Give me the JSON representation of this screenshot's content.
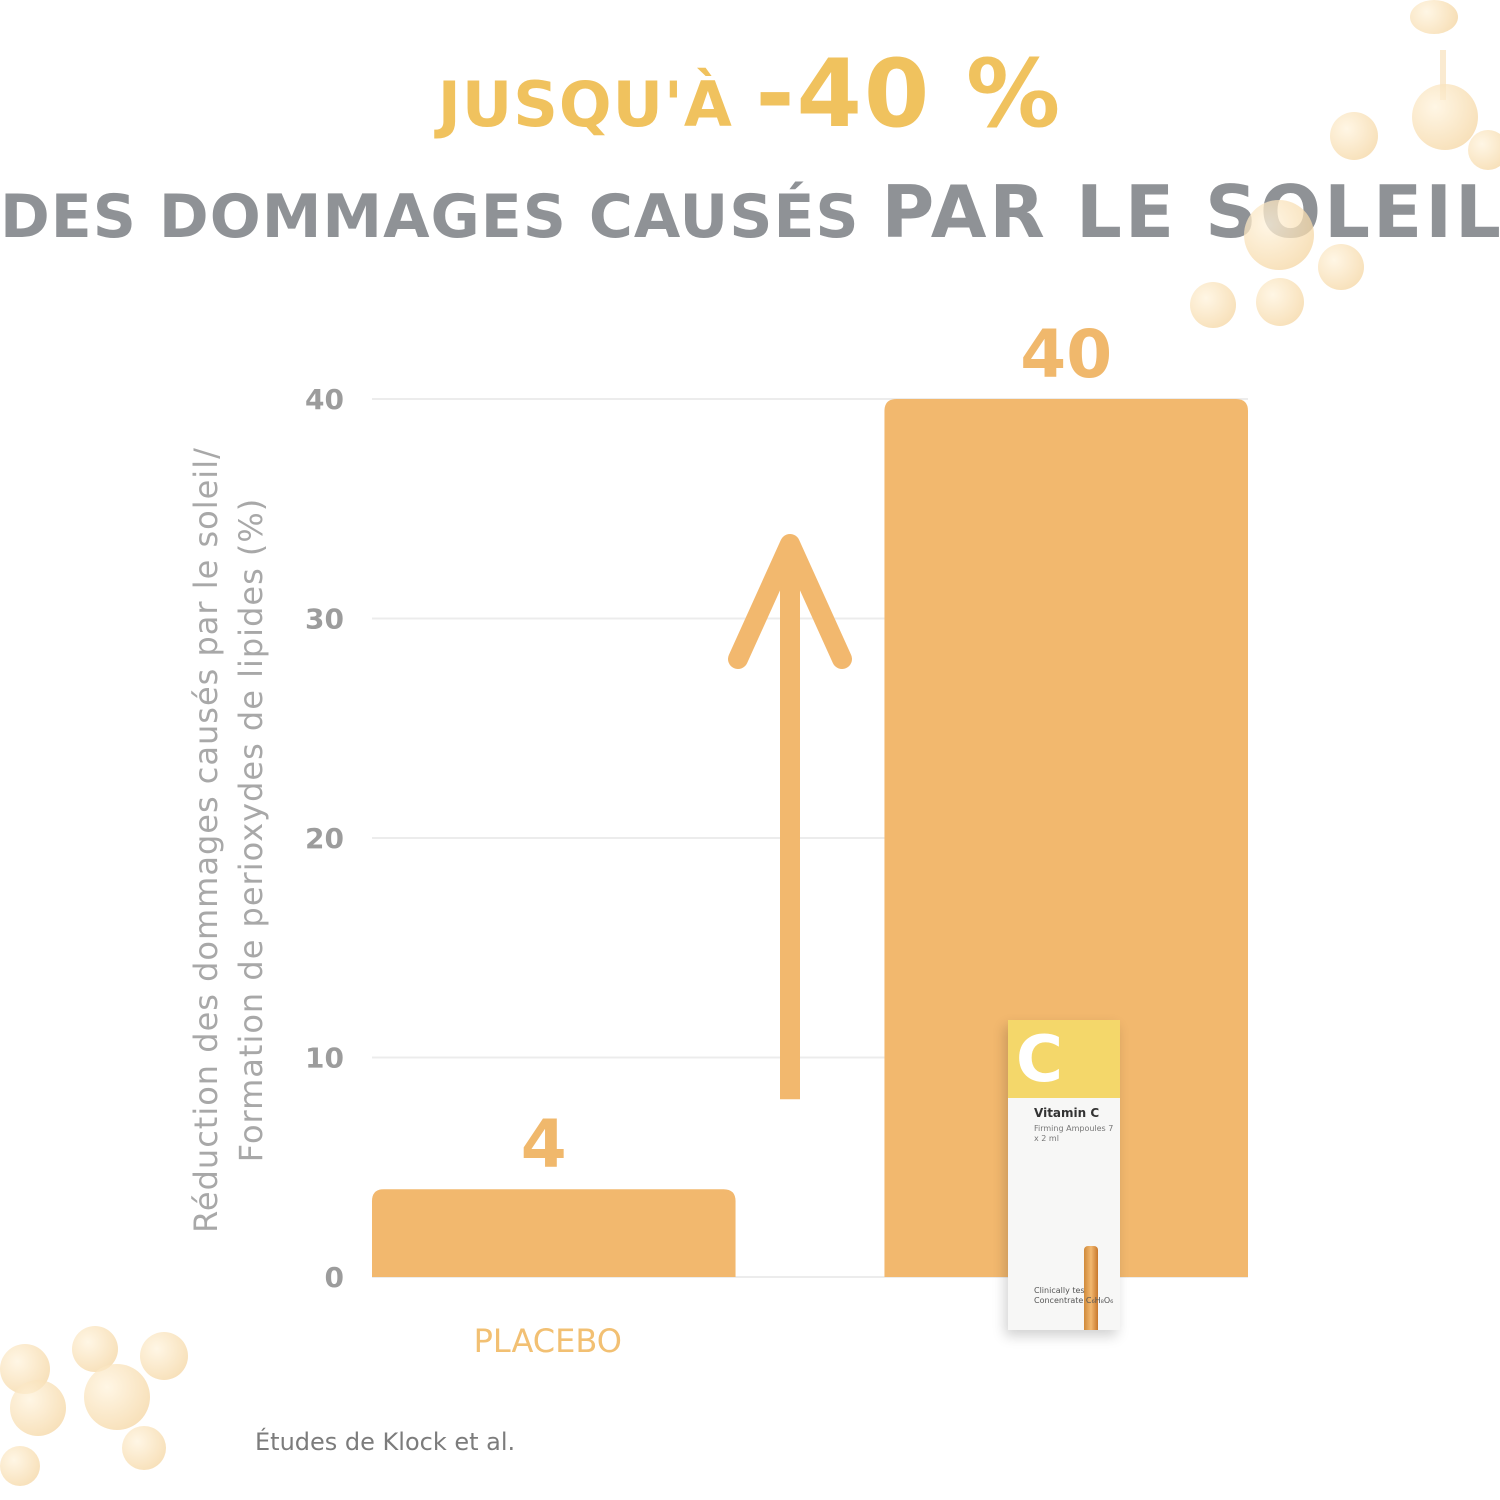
{
  "headline": {
    "line1_prefix": "JUSQU'À ",
    "line1_emphasis": "-40 %",
    "line2_prefix": "DES DOMMAGES CAUSÉS ",
    "line2_emphasis": "PAR LE SOLEIL"
  },
  "chart_data": {
    "type": "bar",
    "categories": [
      "PLACEBO",
      ""
    ],
    "values": [
      4,
      40
    ],
    "value_labels": [
      "4",
      "40"
    ],
    "ylabel_line1": "Réduction des dommages causés par le soleil/",
    "ylabel_line2": "Formation de perioxydes de lipides (%)",
    "ylim": [
      0,
      40
    ],
    "yticks": [
      "0",
      "10",
      "20",
      "30",
      "40"
    ],
    "ytick_values": [
      0,
      10,
      20,
      30,
      40
    ],
    "grid": true,
    "colors": {
      "bar": "#f2b86e",
      "arrow": "#f2b86e",
      "headline_accent": "#f0c25e",
      "headline_gray": "#8f9296"
    }
  },
  "product": {
    "letter": "C",
    "name": "Vitamin C",
    "subtitle": "Firming Ampoules 7 x 2 ml",
    "footer": "Clinically tes Concentrate C₆H₈O₆"
  },
  "source": "Études de Klock et al."
}
